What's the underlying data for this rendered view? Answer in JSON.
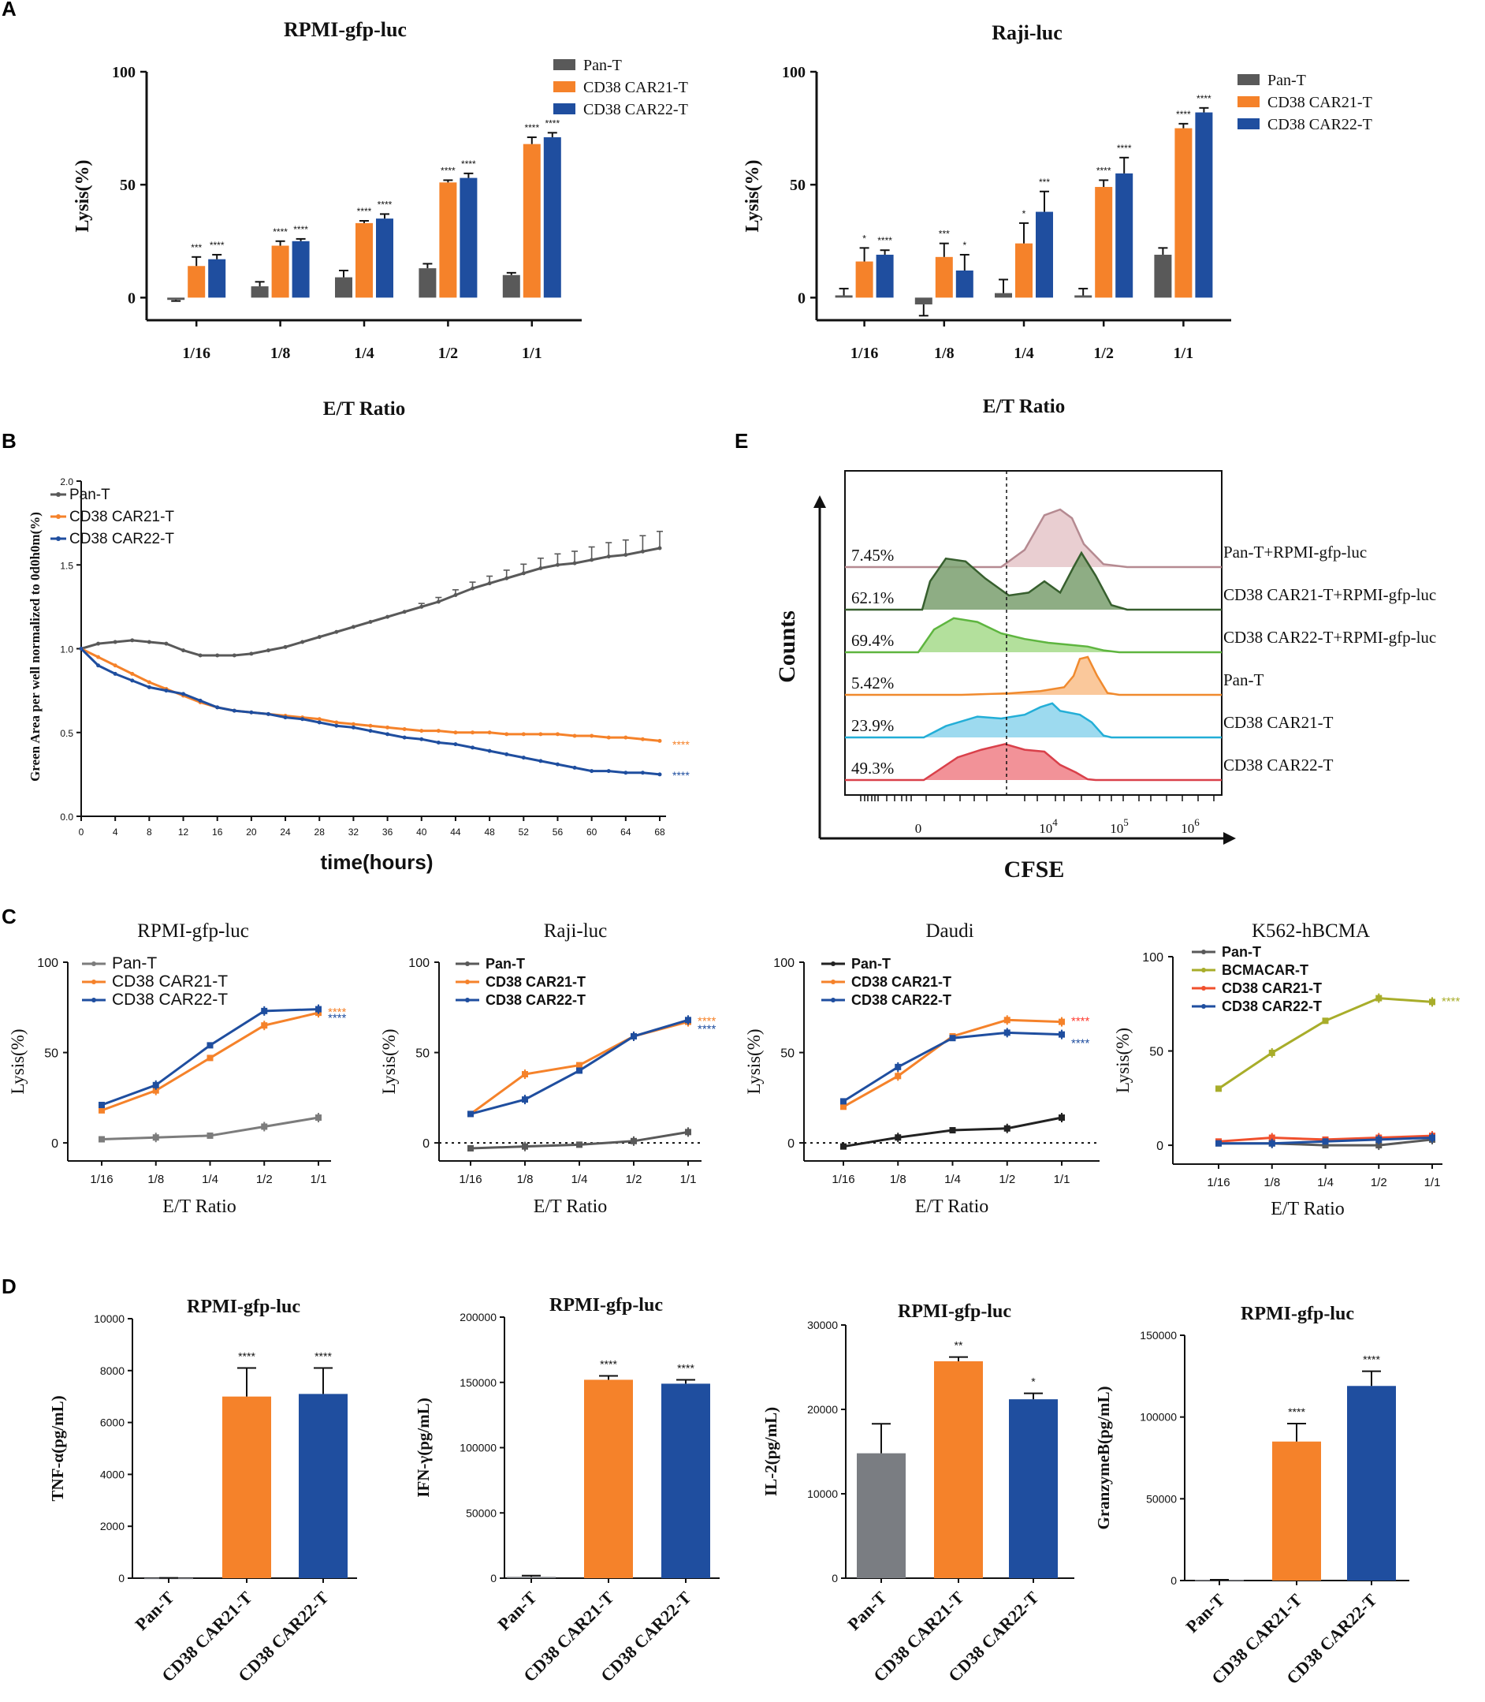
{
  "colors": {
    "pan": "#595959",
    "car21": "#f5822a",
    "car22": "#1f4e9f",
    "bcma": "#a8ad2a",
    "gray_bar": "#7a7d82",
    "sig_red": "#ff3b30"
  },
  "panels": {
    "A": "A",
    "B": "B",
    "C": "C",
    "D": "D",
    "E": "E"
  },
  "chart_data": [
    {
      "id": "A1",
      "type": "bar",
      "title": "RPMI-gfp-luc",
      "xlabel": "E/T Ratio",
      "ylabel": "Lysis(%)",
      "ylim": [
        -10,
        100
      ],
      "yticks": [
        0,
        50,
        100
      ],
      "categories": [
        "1/16",
        "1/8",
        "1/4",
        "1/2",
        "1/1"
      ],
      "legend": [
        "Pan-T",
        "CD38 CAR21-T",
        "CD38 CAR22-T"
      ],
      "series": [
        {
          "name": "Pan-T",
          "values": [
            -1,
            5,
            9,
            13,
            10
          ],
          "errors": [
            0.5,
            2,
            3,
            2,
            1
          ],
          "sig": [
            "",
            "",
            "",
            "",
            ""
          ]
        },
        {
          "name": "CD38 CAR21-T",
          "values": [
            14,
            23,
            33,
            51,
            68
          ],
          "errors": [
            4,
            2,
            1,
            1,
            3
          ],
          "sig": [
            "***",
            "****",
            "****",
            "****",
            "****"
          ]
        },
        {
          "name": "CD38 CAR22-T",
          "values": [
            17,
            25,
            35,
            53,
            71
          ],
          "errors": [
            2,
            1,
            2,
            2,
            2
          ],
          "sig": [
            "****",
            "****",
            "****",
            "****",
            "****"
          ]
        }
      ]
    },
    {
      "id": "A2",
      "type": "bar",
      "title": "Raji-luc",
      "xlabel": "E/T Ratio",
      "ylabel": "Lysis(%)",
      "ylim": [
        -10,
        100
      ],
      "yticks": [
        0,
        50,
        100
      ],
      "categories": [
        "1/16",
        "1/8",
        "1/4",
        "1/2",
        "1/1"
      ],
      "legend": [
        "Pan-T",
        "CD38 CAR21-T",
        "CD38 CAR22-T"
      ],
      "series": [
        {
          "name": "Pan-T",
          "values": [
            1,
            -3,
            2,
            1,
            19
          ],
          "errors": [
            3,
            5,
            6,
            3,
            3
          ],
          "sig": [
            "",
            "",
            "",
            "",
            ""
          ]
        },
        {
          "name": "CD38 CAR21-T",
          "values": [
            16,
            18,
            24,
            49,
            75
          ],
          "errors": [
            6,
            6,
            9,
            3,
            2
          ],
          "sig": [
            "*",
            "***",
            "*",
            "****",
            "****"
          ]
        },
        {
          "name": "CD38 CAR22-T",
          "values": [
            19,
            12,
            38,
            55,
            82
          ],
          "errors": [
            2,
            7,
            9,
            7,
            2
          ],
          "sig": [
            "****",
            "*",
            "***",
            "****",
            "****"
          ]
        }
      ]
    },
    {
      "id": "B",
      "type": "line",
      "xlabel": "time(hours)",
      "ylabel": "Green Area per well normalized to 0d0h0m(%)",
      "xlim": [
        0,
        68
      ],
      "ylim": [
        0,
        2.0
      ],
      "xticks": [
        0,
        4,
        8,
        12,
        16,
        20,
        24,
        28,
        32,
        36,
        40,
        44,
        48,
        52,
        56,
        60,
        64,
        68
      ],
      "yticks": [
        "0.0",
        "0.5",
        "1.0",
        "1.5",
        "2.0"
      ],
      "x": [
        0,
        2,
        4,
        6,
        8,
        10,
        12,
        14,
        16,
        18,
        20,
        22,
        24,
        26,
        28,
        30,
        32,
        34,
        36,
        38,
        40,
        42,
        44,
        46,
        48,
        50,
        52,
        54,
        56,
        58,
        60,
        62,
        64,
        66,
        68
      ],
      "sig_labels": [
        "****",
        "****"
      ],
      "series": [
        {
          "name": "Pan-T",
          "values": [
            1.0,
            1.03,
            1.04,
            1.05,
            1.04,
            1.03,
            0.99,
            0.96,
            0.96,
            0.96,
            0.97,
            0.99,
            1.01,
            1.04,
            1.07,
            1.1,
            1.13,
            1.16,
            1.19,
            1.22,
            1.25,
            1.28,
            1.32,
            1.36,
            1.39,
            1.42,
            1.45,
            1.48,
            1.5,
            1.51,
            1.53,
            1.55,
            1.56,
            1.58,
            1.6
          ]
        },
        {
          "name": "CD38 CAR21-T",
          "values": [
            1.0,
            0.95,
            0.9,
            0.85,
            0.8,
            0.76,
            0.72,
            0.68,
            0.65,
            0.63,
            0.62,
            0.61,
            0.6,
            0.59,
            0.58,
            0.56,
            0.55,
            0.54,
            0.53,
            0.52,
            0.51,
            0.51,
            0.5,
            0.5,
            0.5,
            0.49,
            0.49,
            0.49,
            0.49,
            0.48,
            0.48,
            0.47,
            0.47,
            0.46,
            0.45
          ]
        },
        {
          "name": "CD38 CAR22-T",
          "values": [
            1.0,
            0.9,
            0.85,
            0.81,
            0.77,
            0.75,
            0.73,
            0.69,
            0.65,
            0.63,
            0.62,
            0.61,
            0.59,
            0.58,
            0.56,
            0.54,
            0.53,
            0.51,
            0.49,
            0.47,
            0.46,
            0.44,
            0.43,
            0.41,
            0.39,
            0.37,
            0.35,
            0.33,
            0.31,
            0.29,
            0.27,
            0.27,
            0.26,
            0.26,
            0.25
          ]
        }
      ]
    },
    {
      "id": "C1",
      "type": "line",
      "title": "RPMI-gfp-luc",
      "xlabel": "E/T Ratio",
      "ylabel": "Lysis(%)",
      "ylim": [
        -10,
        100
      ],
      "yticks": [
        0,
        50,
        100
      ],
      "categories": [
        "1/16",
        "1/8",
        "1/4",
        "1/2",
        "1/1"
      ],
      "dotted_zero": false,
      "sig_labels": [
        "****",
        "****"
      ],
      "series": [
        {
          "name": "Pan-T",
          "values": [
            2,
            3,
            4,
            9,
            14
          ]
        },
        {
          "name": "CD38 CAR21-T",
          "values": [
            18,
            29,
            47,
            65,
            72
          ]
        },
        {
          "name": "CD38 CAR22-T",
          "values": [
            21,
            32,
            54,
            73,
            74
          ]
        }
      ]
    },
    {
      "id": "C2",
      "type": "line",
      "title": "Raji-luc",
      "xlabel": "E/T Ratio",
      "ylabel": "Lysis(%)",
      "ylim": [
        -10,
        100
      ],
      "yticks": [
        0,
        50,
        100
      ],
      "categories": [
        "1/16",
        "1/8",
        "1/4",
        "1/2",
        "1/1"
      ],
      "dotted_zero": true,
      "sig_labels": [
        "****",
        "****"
      ],
      "series": [
        {
          "name": "Pan-T",
          "values": [
            -3,
            -2,
            -1,
            1,
            6
          ]
        },
        {
          "name": "CD38 CAR21-T",
          "values": [
            16,
            38,
            43,
            59,
            67
          ]
        },
        {
          "name": "CD38 CAR22-T",
          "values": [
            16,
            24,
            40,
            59,
            68
          ]
        }
      ]
    },
    {
      "id": "C3",
      "type": "line",
      "title": "Daudi",
      "xlabel": "E/T Ratio",
      "ylabel": "Lysis(%)",
      "ylim": [
        -10,
        100
      ],
      "yticks": [
        0,
        50,
        100
      ],
      "categories": [
        "1/16",
        "1/8",
        "1/4",
        "1/2",
        "1/1"
      ],
      "dotted_zero": true,
      "sig_labels": [
        "****",
        "****"
      ],
      "series": [
        {
          "name": "Pan-T",
          "values": [
            -2,
            3,
            7,
            8,
            14
          ]
        },
        {
          "name": "CD38 CAR21-T",
          "values": [
            20,
            37,
            59,
            68,
            67
          ]
        },
        {
          "name": "CD38 CAR22-T",
          "values": [
            23,
            42,
            58,
            61,
            60
          ]
        }
      ]
    },
    {
      "id": "C4",
      "type": "line",
      "title": "K562-hBCMA",
      "xlabel": "E/T Ratio",
      "ylabel": "Lysis(%)",
      "ylim": [
        -10,
        100
      ],
      "yticks": [
        0,
        50,
        100
      ],
      "categories": [
        "1/16",
        "1/8",
        "1/4",
        "1/2",
        "1/1"
      ],
      "dotted_zero": false,
      "sig_labels": [
        "****"
      ],
      "series": [
        {
          "name": "Pan-T",
          "values": [
            1,
            1,
            0,
            0,
            3
          ]
        },
        {
          "name": "BCMACAR-T",
          "values": [
            30,
            49,
            66,
            78,
            76
          ]
        },
        {
          "name": "CD38 CAR21-T",
          "values": [
            2,
            4,
            3,
            4,
            5
          ]
        },
        {
          "name": "CD38 CAR22-T",
          "values": [
            1,
            1,
            2,
            3,
            4
          ]
        }
      ]
    },
    {
      "id": "D1",
      "type": "bar",
      "title": "RPMI-gfp-luc",
      "ylabel": "TNF-α(pg/mL)",
      "ylim": [
        0,
        10000
      ],
      "yticks": [
        "0",
        "2000",
        "4000",
        "6000",
        "8000",
        "10000"
      ],
      "categories": [
        "Pan-T",
        "CD38 CAR21-T",
        "CD38 CAR22-T"
      ],
      "values": [
        10,
        7000,
        7100
      ],
      "errors": [
        0,
        1100,
        1000
      ],
      "sig": [
        "",
        "****",
        "****"
      ]
    },
    {
      "id": "D2",
      "type": "bar",
      "title": "RPMI-gfp-luc",
      "ylabel": "IFN-γ(pg/mL)",
      "ylim": [
        0,
        200000
      ],
      "yticks": [
        "0",
        "50000",
        "100000",
        "150000",
        "200000"
      ],
      "categories": [
        "Pan-T",
        "CD38 CAR21-T",
        "CD38 CAR22-T"
      ],
      "values": [
        1000,
        152000,
        149000
      ],
      "errors": [
        1000,
        3000,
        3000
      ],
      "sig": [
        "",
        "****",
        "****"
      ]
    },
    {
      "id": "D3",
      "type": "bar",
      "title": "RPMI-gfp-luc",
      "ylabel": "IL-2(pg/mL)",
      "ylim": [
        0,
        30000
      ],
      "yticks": [
        "0",
        "10000",
        "20000",
        "30000"
      ],
      "categories": [
        "Pan-T",
        "CD38 CAR21-T",
        "CD38 CAR22-T"
      ],
      "values": [
        14800,
        25700,
        21200
      ],
      "errors": [
        3500,
        500,
        700
      ],
      "sig": [
        "",
        "**",
        "*"
      ]
    },
    {
      "id": "D4",
      "type": "bar",
      "title": "RPMI-gfp-luc",
      "ylabel": "GranzymeB(pg/mL)",
      "ylim": [
        0,
        150000
      ],
      "yticks": [
        "0",
        "50000",
        "100000",
        "150000"
      ],
      "categories": [
        "Pan-T",
        "CD38 CAR21-T",
        "CD38 CAR22-T"
      ],
      "values": [
        500,
        85000,
        119000
      ],
      "errors": [
        0,
        11000,
        9000
      ],
      "sig": [
        "",
        "****",
        "****"
      ]
    },
    {
      "id": "E",
      "type": "histogram",
      "xlabel": "CFSE",
      "ylabel": "Counts",
      "xticks": [
        "0",
        "10",
        "10",
        "10"
      ],
      "xtick_exps": [
        "",
        "4",
        "5",
        "6"
      ],
      "tracks": [
        {
          "label": "Pan-T+RPMI-gfp-luc",
          "pct": "7.45%",
          "color": "#e5c5c9",
          "stroke": "#b58a91"
        },
        {
          "label": "CD38 CAR21-T+RPMI-gfp-luc",
          "pct": "62.1%",
          "color": "#7a9f6f",
          "stroke": "#375f2e"
        },
        {
          "label": "CD38 CAR22-T+RPMI-gfp-luc",
          "pct": "69.4%",
          "color": "#a6db8b",
          "stroke": "#5eb53f"
        },
        {
          "label": "Pan-T",
          "pct": "5.42%",
          "color": "#f9be8a",
          "stroke": "#f08a2e"
        },
        {
          "label": "CD38 CAR21-T",
          "pct": "23.9%",
          "color": "#8cd3ec",
          "stroke": "#23aed7"
        },
        {
          "label": "CD38 CAR22-T",
          "pct": "49.3%",
          "color": "#f07f86",
          "stroke": "#d9404a"
        }
      ]
    }
  ]
}
